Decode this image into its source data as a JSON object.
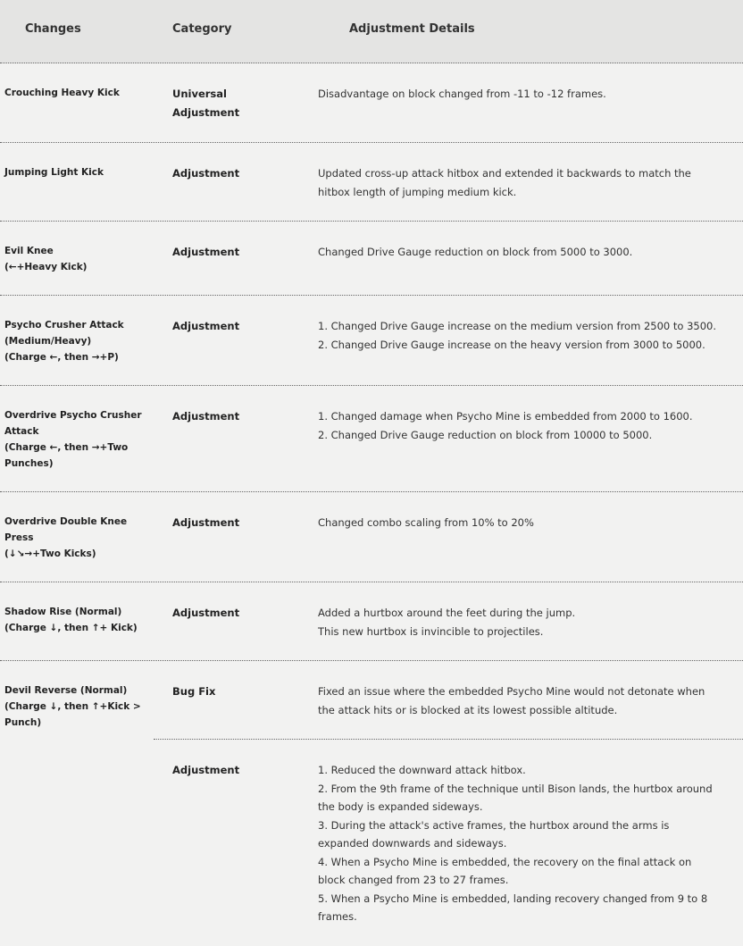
{
  "header": [
    "Changes",
    "Category",
    "Adjustment Details"
  ],
  "rows": [
    {
      "change": [
        "Crouching Heavy Kick"
      ],
      "entries": [
        {
          "category": "Universal Adjustment",
          "details": [
            "Disadvantage on block changed from -11 to -12 frames."
          ]
        }
      ]
    },
    {
      "change": [
        "Jumping Light Kick"
      ],
      "entries": [
        {
          "category": "Adjustment",
          "details": [
            "Updated cross-up attack hitbox and extended it backwards to match the hitbox length of jumping medium kick."
          ]
        }
      ]
    },
    {
      "change": [
        "Evil Knee",
        "(←+Heavy Kick)"
      ],
      "entries": [
        {
          "category": "Adjustment",
          "details": [
            "Changed Drive Gauge reduction on block from 5000 to 3000."
          ]
        }
      ]
    },
    {
      "change": [
        "Psycho Crusher Attack",
        "(Medium/Heavy)",
        "(Charge ←, then →+P)"
      ],
      "entries": [
        {
          "category": "Adjustment",
          "details": [
            "1. Changed Drive Gauge increase on the medium version from 2500 to 3500.",
            "2. Changed Drive Gauge increase on the heavy version from 3000 to 5000."
          ]
        }
      ]
    },
    {
      "change": [
        "Overdrive Psycho Crusher Attack",
        "(Charge ←, then →+Two Punches)"
      ],
      "entries": [
        {
          "category": "Adjustment",
          "details": [
            "1. Changed damage when Psycho Mine is embedded from 2000 to 1600.",
            "2. Changed Drive Gauge reduction on block from 10000 to 5000."
          ]
        }
      ]
    },
    {
      "change": [
        "Overdrive Double Knee Press",
        "(↓↘→+Two Kicks)"
      ],
      "entries": [
        {
          "category": "Adjustment",
          "details": [
            "Changed combo scaling from 10% to 20%"
          ]
        }
      ]
    },
    {
      "change": [
        "Shadow Rise (Normal)",
        "(Charge ↓, then ↑+ Kick)"
      ],
      "entries": [
        {
          "category": "Adjustment",
          "details": [
            "Added a hurtbox around the feet during the jump.",
            "This new hurtbox is invincible to projectiles."
          ]
        }
      ]
    },
    {
      "change": [
        "Devil Reverse (Normal)",
        "(Charge ↓, then ↑+Kick > Punch)"
      ],
      "entries": [
        {
          "category": "Bug Fix",
          "details": [
            "Fixed an issue where the embedded Psycho Mine would not detonate when the attack hits or is blocked at its lowest possible altitude."
          ]
        },
        {
          "category": "Adjustment",
          "details": [
            "1. Reduced the downward attack hitbox.",
            "2. From the 9th frame of the technique until Bison lands, the hurtbox around the body is expanded sideways.",
            "3. During the attack's active frames, the hurtbox around the arms is expanded downwards and sideways.",
            "4. When a Psycho Mine is embedded, the recovery on the final attack on block changed from 23 to 27 frames.",
            "5. When a Psycho Mine is embedded, landing recovery changed from 9 to 8 frames."
          ]
        }
      ]
    }
  ]
}
